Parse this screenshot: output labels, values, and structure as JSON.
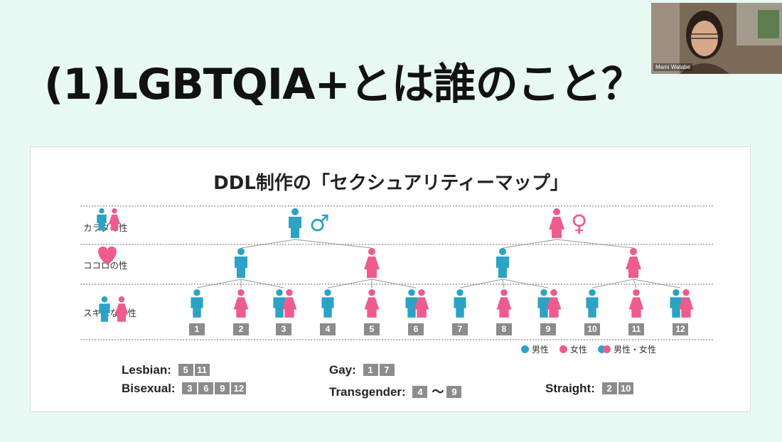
{
  "slide": {
    "title": "(1)LGBTQIA+とは誰のこと？"
  },
  "video": {
    "participant_name": "Mami Watabe"
  },
  "map": {
    "title": "DDL制作の「セクシュアリティーマップ」",
    "rows": {
      "body": "カラダの性",
      "heart": "ココロの性",
      "attraction": "スキになる性"
    },
    "body_symbols": {
      "male": "♂",
      "female": "♀"
    },
    "numbers": [
      "1",
      "2",
      "3",
      "4",
      "5",
      "6",
      "7",
      "8",
      "9",
      "10",
      "11",
      "12"
    ],
    "legend": {
      "male": "男性",
      "female": "女性",
      "both": "男性・女性"
    },
    "categories": {
      "lesbian": {
        "label": "Lesbian:",
        "nums": [
          "5",
          "11"
        ]
      },
      "gay": {
        "label": "Gay:",
        "nums": [
          "1",
          "7"
        ]
      },
      "bisexual": {
        "label": "Bisexual:",
        "nums": [
          "3",
          "6",
          "9",
          "12"
        ]
      },
      "transgender": {
        "label": "Transgender:",
        "from": "4",
        "sep": "〜",
        "to": "9"
      },
      "straight": {
        "label": "Straight:",
        "nums": [
          "2",
          "10"
        ]
      }
    },
    "colors": {
      "male": "#2aa3c4",
      "female": "#ee5b8c",
      "box": "#8c8c8c"
    }
  }
}
